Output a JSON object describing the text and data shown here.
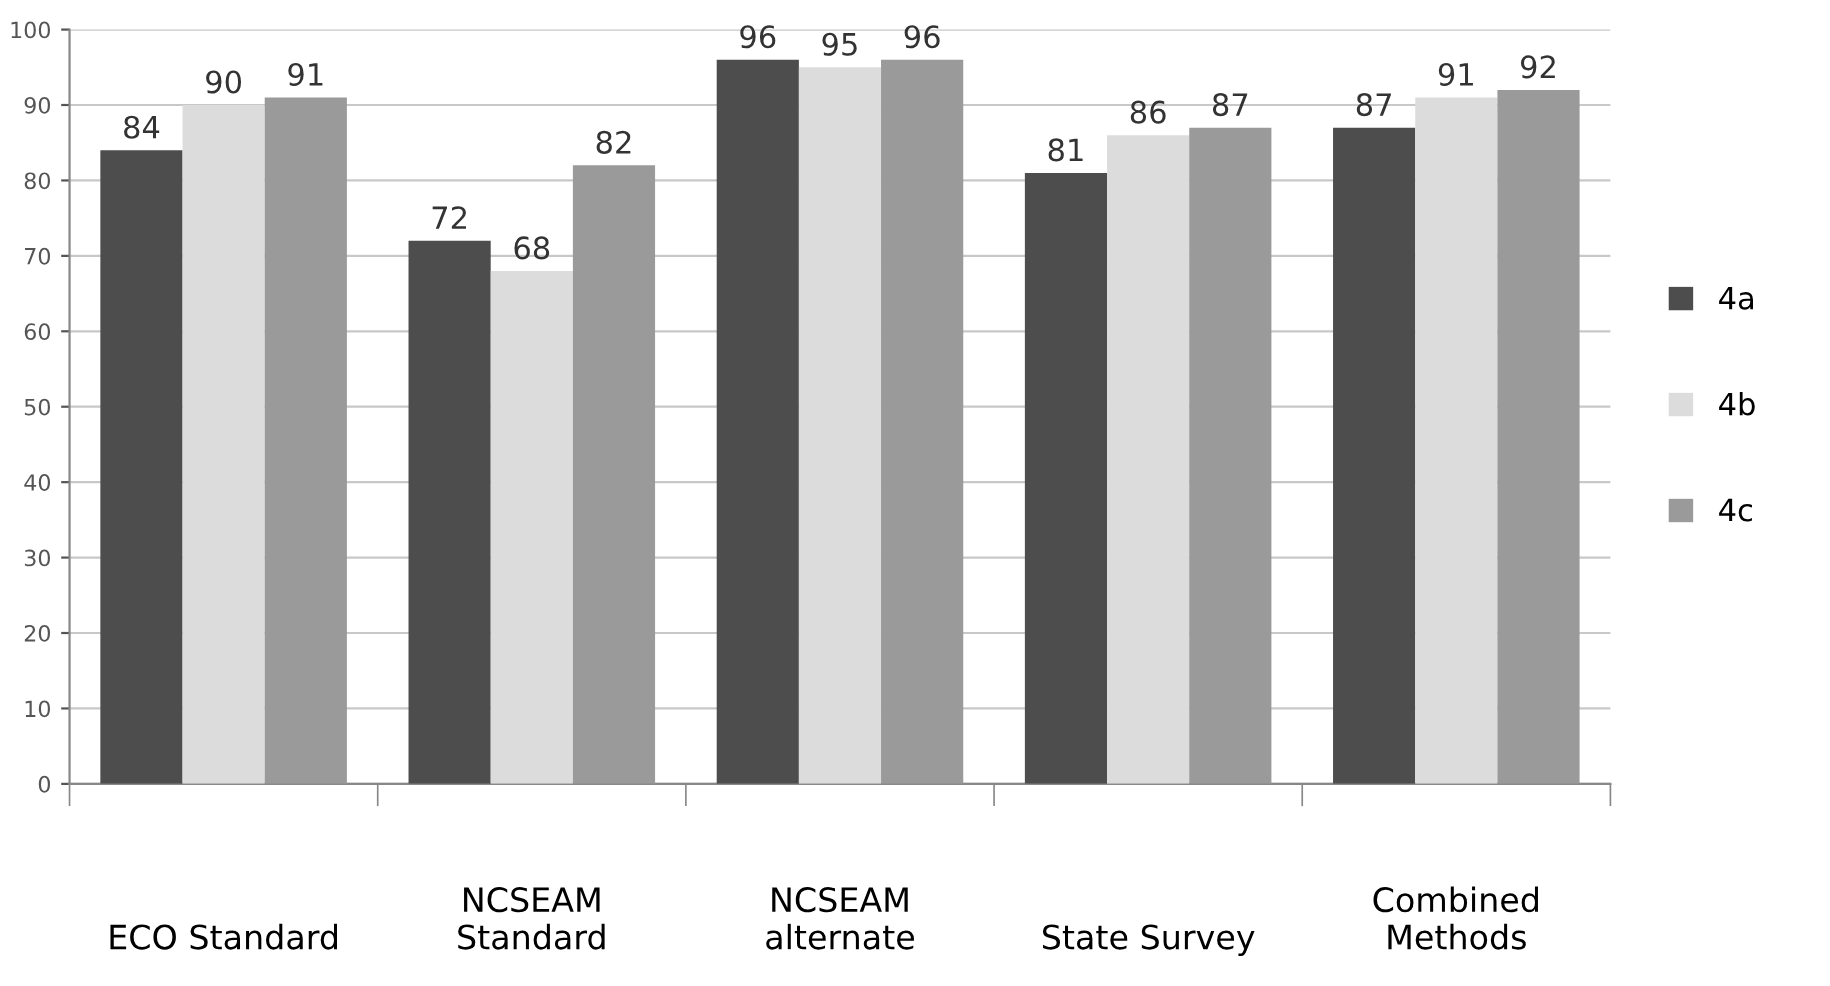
{
  "chart_data": {
    "type": "bar",
    "categories": [
      "ECO Standard",
      "NCSEAM\nStandard",
      "NCSEAM\nalternate",
      "State Survey",
      "Combined\nMethods"
    ],
    "series": [
      {
        "name": "4a",
        "color": "#4d4d4d",
        "values": [
          84,
          72,
          96,
          81,
          87
        ]
      },
      {
        "name": "4b",
        "color": "#dcdcdc",
        "values": [
          90,
          68,
          95,
          86,
          91
        ]
      },
      {
        "name": "4c",
        "color": "#9a9a9a",
        "values": [
          91,
          82,
          96,
          87,
          92
        ]
      }
    ],
    "ylim": [
      0,
      100
    ],
    "yticks": [
      0,
      10,
      20,
      30,
      40,
      50,
      60,
      70,
      80,
      90,
      100
    ],
    "grid": "y",
    "legend": "right",
    "data_labels": true
  }
}
